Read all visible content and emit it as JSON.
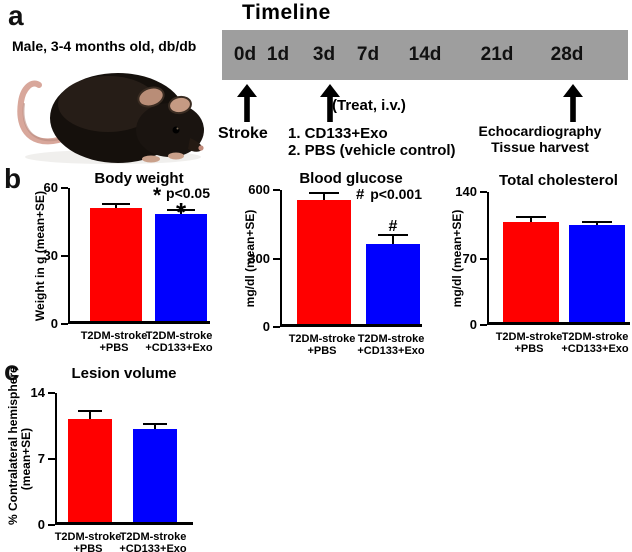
{
  "panel_a": {
    "letter": "a",
    "subject_label": "Male, 3-4 months old, db/db",
    "mouse_image": "black db/db mouse photo",
    "timeline": {
      "title": "Timeline",
      "bar_color": "#9e9e9e",
      "days": [
        "0d",
        "1d",
        "3d",
        "7d",
        "14d",
        "21d",
        "28d"
      ],
      "stroke_label": "Stroke",
      "treat_label": "(Treat, i.v.)",
      "treat_items": [
        "1. CD133+Exo",
        "2. PBS (vehicle control)"
      ],
      "endpoint_lines": [
        "Echocardiography",
        "Tissue harvest"
      ]
    }
  },
  "panel_b": {
    "letter": "b"
  },
  "panel_c": {
    "letter": "c"
  },
  "group_colors": {
    "pbs": "#ff0000",
    "cd133_exo": "#0000ff"
  },
  "chart_data": [
    {
      "id": "body-weight",
      "type": "bar",
      "title": "Body weight",
      "ylabel_lines": [
        "Weight in g (mean+SE)"
      ],
      "ylim": [
        0,
        60
      ],
      "yticks": [
        0,
        30,
        60
      ],
      "categories": [
        [
          "T2DM-stroke",
          "+PBS"
        ],
        [
          "T2DM-stroke",
          "+CD133+Exo"
        ]
      ],
      "values": [
        50,
        47
      ],
      "errors": [
        1.3,
        1.7
      ],
      "colors": [
        "#ff0000",
        "#0000ff"
      ],
      "annotation_symbol": "*",
      "annotation_text": "p<0.05",
      "markers": [
        "",
        "*"
      ]
    },
    {
      "id": "blood-glucose",
      "type": "bar",
      "title": "Blood glucose",
      "ylabel_lines": [
        "mg/dl (mean+SE)"
      ],
      "ylim": [
        0,
        600
      ],
      "yticks": [
        0,
        300,
        600
      ],
      "categories": [
        [
          "T2DM-stroke",
          "+PBS"
        ],
        [
          "T2DM-stroke",
          "+CD133+Exo"
        ]
      ],
      "values": [
        545,
        352
      ],
      "errors": [
        25,
        33
      ],
      "colors": [
        "#ff0000",
        "#0000ff"
      ],
      "annotation_symbol": "#",
      "annotation_text": "p<0.001",
      "markers": [
        "",
        "#"
      ]
    },
    {
      "id": "total-cholesterol",
      "type": "bar",
      "title": "Total cholesterol",
      "ylabel_lines": [
        "mg/dl (mean+SE)"
      ],
      "ylim": [
        0,
        140
      ],
      "yticks": [
        0,
        70,
        140
      ],
      "categories": [
        [
          "T2DM-stroke",
          "+PBS"
        ],
        [
          "T2DM-stroke",
          "+CD133+Exo"
        ]
      ],
      "values": [
        105,
        102
      ],
      "errors": [
        5,
        2.5
      ],
      "colors": [
        "#ff0000",
        "#0000ff"
      ],
      "annotation_symbol": "",
      "annotation_text": "",
      "markers": [
        "",
        ""
      ]
    },
    {
      "id": "lesion-volume",
      "type": "bar",
      "title": "Lesion volume",
      "ylabel_lines": [
        "% Contralateral hemisphere",
        "(mean+SE)"
      ],
      "ylim": [
        0,
        14
      ],
      "yticks": [
        0,
        7,
        14
      ],
      "categories": [
        [
          "T2DM-stroke",
          "+PBS"
        ],
        [
          "T2DM-stroke",
          "+CD133+Exo"
        ]
      ],
      "values": [
        10.9,
        9.9
      ],
      "errors": [
        0.8,
        0.35
      ],
      "colors": [
        "#ff0000",
        "#0000ff"
      ],
      "annotation_symbol": "",
      "annotation_text": "",
      "markers": [
        "",
        ""
      ]
    }
  ]
}
